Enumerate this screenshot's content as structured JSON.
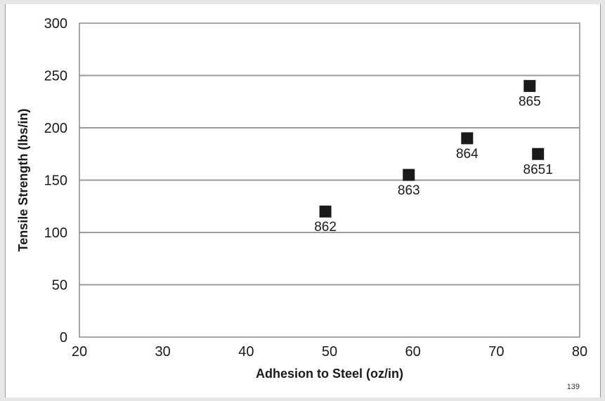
{
  "chart_data": {
    "type": "scatter",
    "title": "",
    "xlabel": "Adhesion to Steel (oz/in)",
    "ylabel": "Tensile Strength (lbs/in)",
    "xlim": [
      20,
      80
    ],
    "ylim": [
      0,
      300
    ],
    "x_ticks": [
      20,
      30,
      40,
      50,
      60,
      70,
      80
    ],
    "y_ticks": [
      0,
      50,
      100,
      150,
      200,
      250,
      300
    ],
    "grid": "horizontal",
    "legend": "none",
    "marker": "square",
    "marker_color": "#1a1a1a",
    "grid_color": "#9a9a9a",
    "points": [
      {
        "label": "862",
        "x": 49.5,
        "y": 120
      },
      {
        "label": "863",
        "x": 59.5,
        "y": 155
      },
      {
        "label": "864",
        "x": 66.5,
        "y": 190
      },
      {
        "label": "865",
        "x": 74,
        "y": 240
      },
      {
        "label": "8651",
        "x": 75,
        "y": 175
      }
    ]
  },
  "page_number": "139"
}
